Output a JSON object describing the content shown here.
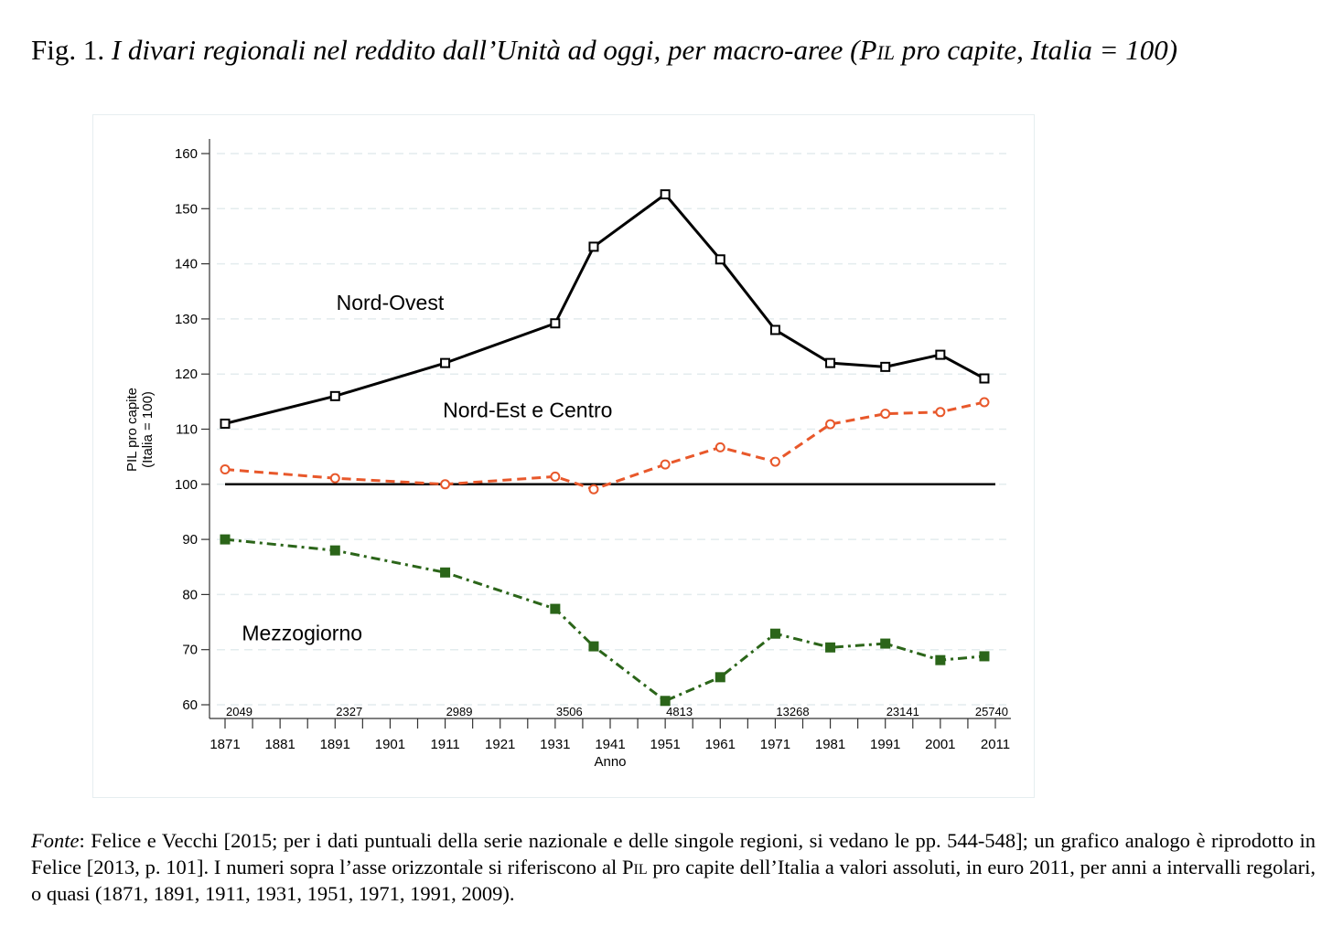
{
  "caption": {
    "prefix": "Fig. 1.",
    "title_italic_1": "I divari regionali nel reddito dall’Unità ad oggi, per macro-aree (P",
    "title_smallcaps": "il",
    "title_italic_2": " pro capite, Italia = 100)"
  },
  "footnote": {
    "label": "Fonte",
    "text_1": ": Felice e Vecchi [2015; per i dati puntuali della serie nazionale e delle singole regioni, si vedano le pp. 544-548]; un grafico analogo è riprodotto in Felice [2013, p. 101]. I numeri sopra l’asse orizzontale si riferiscono al P",
    "text_smallcaps": "il",
    "text_2": " pro capite dell’Italia a valori assoluti, in euro 2011, per anni a intervalli regolari, o quasi (1871, 1891, 1911, 1931, 1951, 1971, 1991, 2009)."
  },
  "chart_data": {
    "type": "line",
    "title": "I divari regionali nel reddito dall’Unità ad oggi, per macro-aree (PIL pro capite, Italia = 100)",
    "xlabel": "Anno",
    "ylabel_line1": "PIL pro capite",
    "ylabel_line2": "(Italia = 100)",
    "xlim": [
      1871,
      2011
    ],
    "ylim": [
      60,
      160
    ],
    "x_ticks_major": [
      1871,
      1881,
      1891,
      1901,
      1911,
      1921,
      1931,
      1941,
      1951,
      1961,
      1971,
      1981,
      1991,
      2001,
      2011
    ],
    "x_ticks_minor": [
      1876,
      1886,
      1896,
      1906,
      1916,
      1926,
      1936,
      1946,
      1956,
      1966,
      1976,
      1986,
      1996,
      2006
    ],
    "y_ticks": [
      60,
      70,
      80,
      90,
      100,
      110,
      120,
      130,
      140,
      150,
      160
    ],
    "grid": "horizontal dashed",
    "legend": "none (inline labels)",
    "x": [
      1871,
      1891,
      1911,
      1931,
      1938,
      1951,
      1961,
      1971,
      1981,
      1991,
      2001,
      2009
    ],
    "series": [
      {
        "name": "Nord-Ovest",
        "color": "#000000",
        "style": "solid",
        "marker": "hollow-square",
        "values": [
          111.0,
          116.0,
          122.0,
          129.2,
          143.1,
          152.6,
          140.8,
          128.0,
          122.0,
          121.3,
          123.5,
          119.2
        ]
      },
      {
        "name": "Nord-Est e Centro",
        "color": "#e8582b",
        "style": "dashed",
        "marker": "hollow-circle",
        "values": [
          102.7,
          101.1,
          100.0,
          101.4,
          99.1,
          103.6,
          106.7,
          104.1,
          110.9,
          112.8,
          113.1,
          114.9
        ]
      },
      {
        "name": "Mezzogiorno",
        "color": "#2b6519",
        "style": "dash-dot",
        "marker": "filled-square",
        "values": [
          90.0,
          88.0,
          84.0,
          77.4,
          70.6,
          60.7,
          65.0,
          72.9,
          70.4,
          71.1,
          68.1,
          68.8
        ]
      }
    ],
    "reference_line": {
      "name": "Italia",
      "value": 100,
      "color": "#000000"
    },
    "series_labels": [
      {
        "text": "Nord-Ovest",
        "x": 1901,
        "y": 133
      },
      {
        "text": "Nord-Est e Centro",
        "x": 1926,
        "y": 113.5
      },
      {
        "text": "Mezzogiorno",
        "x": 1885,
        "y": 73
      }
    ],
    "gdp_annotations": {
      "description": "PIL pro capite dell'Italia, euro 2011",
      "years": [
        1871,
        1891,
        1911,
        1931,
        1951,
        1971,
        1991,
        2009
      ],
      "values": [
        "2049",
        "2327",
        "2989",
        "3506",
        "4813",
        "13268",
        "23141",
        "25740"
      ]
    }
  }
}
